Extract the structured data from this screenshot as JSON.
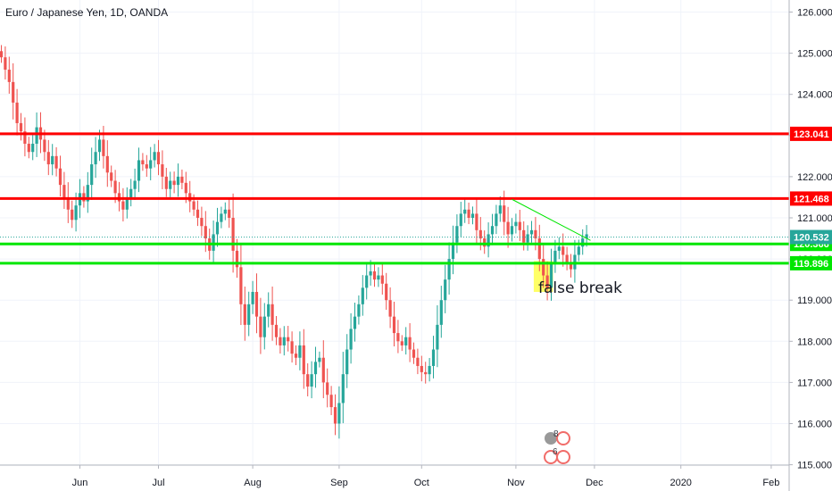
{
  "chart_data": {
    "type": "candlestick",
    "title": "Euro / Japanese Yen, 1D, OANDA",
    "ylim": [
      115.0,
      126.4
    ],
    "x_tick_labels": [
      "Jun",
      "Jul",
      "Aug",
      "Sep",
      "Oct",
      "Nov",
      "Dec",
      "2020",
      "Feb"
    ],
    "y_tick_labels": [
      "126.000",
      "125.000",
      "124.000",
      "123.000",
      "122.000",
      "121.000",
      "120.000",
      "119.000",
      "118.000",
      "117.000",
      "116.000",
      "115.000"
    ],
    "grid": true,
    "colors": {
      "up": "#26a69a",
      "down": "#ef5350",
      "resistance": "#ff0000",
      "support": "#00e600",
      "trendline": "#00e600",
      "price": "#26a69a"
    },
    "closes": [
      124.9,
      124.6,
      124.3,
      123.8,
      123.3,
      123.1,
      122.8,
      122.6,
      122.8,
      123.2,
      122.9,
      122.6,
      122.3,
      122.5,
      122.2,
      121.8,
      121.5,
      121.2,
      120.95,
      121.3,
      121.6,
      121.4,
      121.8,
      122.3,
      122.6,
      122.9,
      122.5,
      122.1,
      121.9,
      121.6,
      121.4,
      121.2,
      121.5,
      121.7,
      121.9,
      122.4,
      122.3,
      122.2,
      122.4,
      122.6,
      122.3,
      122.0,
      121.7,
      121.9,
      121.8,
      122.0,
      121.85,
      121.6,
      121.4,
      121.2,
      121.0,
      120.8,
      120.5,
      120.2,
      120.6,
      120.9,
      121.1,
      121.2,
      121.0,
      120.2,
      119.8,
      118.9,
      118.4,
      118.9,
      119.2,
      118.6,
      118.1,
      118.6,
      118.9,
      118.4,
      118.1,
      117.9,
      118.1,
      118.0,
      117.7,
      117.6,
      117.9,
      117.2,
      116.9,
      117.2,
      117.5,
      117.6,
      117.0,
      116.7,
      116.4,
      116.0,
      116.5,
      117.2,
      117.8,
      118.3,
      118.6,
      118.9,
      119.3,
      119.6,
      119.7,
      119.5,
      119.6,
      119.4,
      119.0,
      118.6,
      118.2,
      118.0,
      117.9,
      118.1,
      117.8,
      117.6,
      117.4,
      117.25,
      117.2,
      117.4,
      117.8,
      118.4,
      119.0,
      119.5,
      120.0,
      120.4,
      120.8,
      121.1,
      121.2,
      121.0,
      121.1,
      120.7,
      120.5,
      120.3,
      120.6,
      120.8,
      121.1,
      121.3,
      120.9,
      120.6,
      120.8,
      120.9,
      120.7,
      120.4,
      120.6,
      120.7,
      120.5,
      120.0,
      119.6,
      119.3,
      119.9,
      120.2,
      120.3,
      120.1,
      119.9,
      119.75,
      120.1,
      120.3,
      120.5,
      120.6
    ],
    "levels": [
      {
        "price": 123.041,
        "label": "123.041",
        "kind": "resistance"
      },
      {
        "price": 121.468,
        "label": "121.468",
        "kind": "resistance"
      },
      {
        "price": 120.366,
        "label": "120.366",
        "kind": "support"
      },
      {
        "price": 119.896,
        "label": "119.896",
        "kind": "support"
      }
    ],
    "last_price": {
      "price": 120.532,
      "label": "120.532"
    },
    "annotations": [
      {
        "text": "false break"
      }
    ],
    "trendline": {
      "from_index": 130,
      "from_price": 121.45,
      "to_index": 150,
      "to_price": 120.45
    },
    "highlight": {
      "from_index": 136,
      "to_index": 140,
      "low": 119.2,
      "high": 119.95
    },
    "tick_positions": {
      "x_tick_indexes": [
        20,
        40,
        64,
        86,
        107,
        131,
        151,
        173,
        196
      ]
    },
    "watermark_badges": [
      "8",
      "6"
    ]
  }
}
